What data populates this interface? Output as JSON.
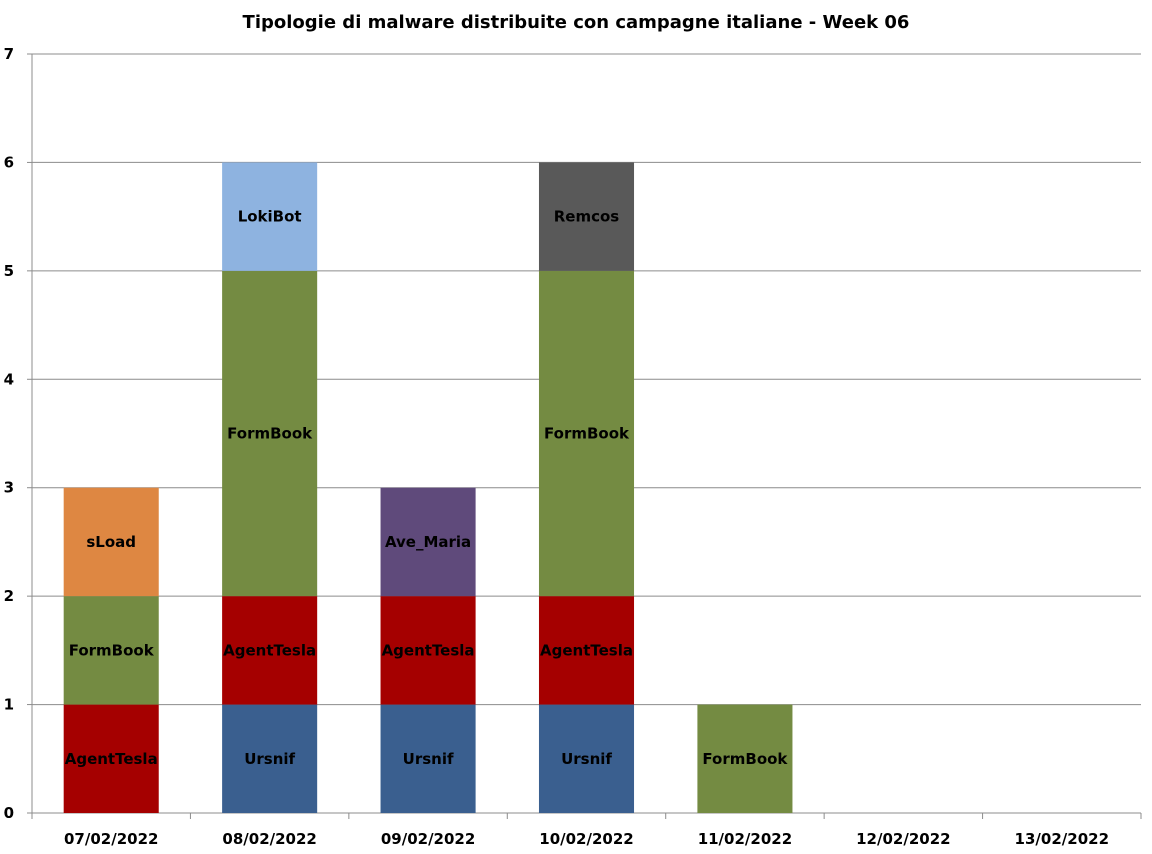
{
  "chart_data": {
    "type": "bar",
    "stacked": true,
    "title": "Tipologie  di malware distribuite con campagne italiane - Week 06",
    "xlabel": "",
    "ylabel": "",
    "ylim": [
      0,
      7
    ],
    "yticks": [
      "0",
      "1",
      "2",
      "3",
      "4",
      "5",
      "6",
      "7"
    ],
    "grid": true,
    "legend": "none",
    "categories": [
      "07/02/2022",
      "08/02/2022",
      "09/02/2022",
      "10/02/2022",
      "11/02/2022",
      "12/02/2022",
      "13/02/2022"
    ],
    "series": [
      {
        "name": "Ursnif",
        "color": "#3a5f8f",
        "values": [
          0,
          1,
          1,
          1,
          0,
          0,
          0
        ]
      },
      {
        "name": "AgentTesla",
        "color": "#a50000",
        "values": [
          1,
          1,
          1,
          1,
          0,
          0,
          0
        ]
      },
      {
        "name": "FormBook",
        "color": "#748b42",
        "values": [
          1,
          3,
          0,
          3,
          1,
          0,
          0
        ]
      },
      {
        "name": "Ave_Maria",
        "color": "#5f4a7b",
        "values": [
          0,
          0,
          1,
          0,
          0,
          0,
          0
        ]
      },
      {
        "name": "sLoad",
        "color": "#de8742",
        "values": [
          1,
          0,
          0,
          0,
          0,
          0,
          0
        ]
      },
      {
        "name": "LokiBot",
        "color": "#8eb3e0",
        "values": [
          0,
          1,
          0,
          0,
          0,
          0,
          0
        ]
      },
      {
        "name": "Remcos",
        "color": "#595959",
        "values": [
          0,
          0,
          0,
          1,
          0,
          0,
          0
        ]
      }
    ],
    "colors": {
      "grid": "#8c8c8c",
      "axis": "#8c8c8c",
      "text": "#000000",
      "background": "#ffffff"
    }
  }
}
